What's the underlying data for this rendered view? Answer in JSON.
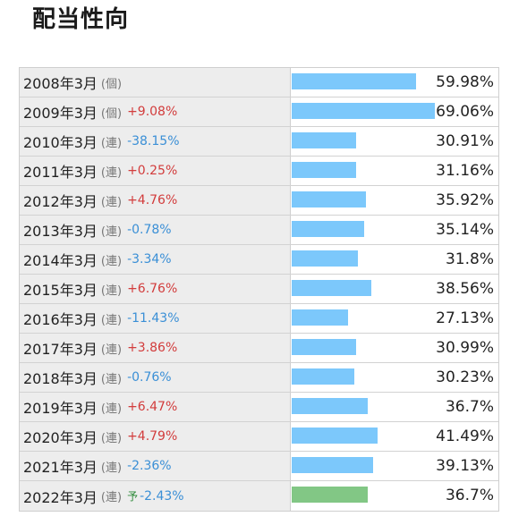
{
  "title": "配当性向",
  "rows": [
    {
      "period": "2008年3月",
      "type": "(個)",
      "forecast": "",
      "change": "",
      "dir": "",
      "value": "59.98%",
      "ratio": 59.98,
      "is_forecast": false
    },
    {
      "period": "2009年3月",
      "type": "(個)",
      "forecast": "",
      "change": "+9.08%",
      "dir": "up",
      "value": "69.06%",
      "ratio": 69.06,
      "is_forecast": false
    },
    {
      "period": "2010年3月",
      "type": "(連)",
      "forecast": "",
      "change": "-38.15%",
      "dir": "down",
      "value": "30.91%",
      "ratio": 30.91,
      "is_forecast": false
    },
    {
      "period": "2011年3月",
      "type": "(連)",
      "forecast": "",
      "change": "+0.25%",
      "dir": "up",
      "value": "31.16%",
      "ratio": 31.16,
      "is_forecast": false
    },
    {
      "period": "2012年3月",
      "type": "(連)",
      "forecast": "",
      "change": "+4.76%",
      "dir": "up",
      "value": "35.92%",
      "ratio": 35.92,
      "is_forecast": false
    },
    {
      "period": "2013年3月",
      "type": "(連)",
      "forecast": "",
      "change": "-0.78%",
      "dir": "down",
      "value": "35.14%",
      "ratio": 35.14,
      "is_forecast": false
    },
    {
      "period": "2014年3月",
      "type": "(連)",
      "forecast": "",
      "change": "-3.34%",
      "dir": "down",
      "value": "31.8%",
      "ratio": 31.8,
      "is_forecast": false
    },
    {
      "period": "2015年3月",
      "type": "(連)",
      "forecast": "",
      "change": "+6.76%",
      "dir": "up",
      "value": "38.56%",
      "ratio": 38.56,
      "is_forecast": false
    },
    {
      "period": "2016年3月",
      "type": "(連)",
      "forecast": "",
      "change": "-11.43%",
      "dir": "down",
      "value": "27.13%",
      "ratio": 27.13,
      "is_forecast": false
    },
    {
      "period": "2017年3月",
      "type": "(連)",
      "forecast": "",
      "change": "+3.86%",
      "dir": "up",
      "value": "30.99%",
      "ratio": 30.99,
      "is_forecast": false
    },
    {
      "period": "2018年3月",
      "type": "(連)",
      "forecast": "",
      "change": "-0.76%",
      "dir": "down",
      "value": "30.23%",
      "ratio": 30.23,
      "is_forecast": false
    },
    {
      "period": "2019年3月",
      "type": "(連)",
      "forecast": "",
      "change": "+6.47%",
      "dir": "up",
      "value": "36.7%",
      "ratio": 36.7,
      "is_forecast": false
    },
    {
      "period": "2020年3月",
      "type": "(連)",
      "forecast": "",
      "change": "+4.79%",
      "dir": "up",
      "value": "41.49%",
      "ratio": 41.49,
      "is_forecast": false
    },
    {
      "period": "2021年3月",
      "type": "(連)",
      "forecast": "",
      "change": "-2.36%",
      "dir": "down",
      "value": "39.13%",
      "ratio": 39.13,
      "is_forecast": false
    },
    {
      "period": "2022年3月",
      "type": "(連)",
      "forecast": "予",
      "change": "-2.43%",
      "dir": "down",
      "value": "36.7%",
      "ratio": 36.7,
      "is_forecast": true
    }
  ],
  "colors": {
    "bar": "#7cc8fb",
    "forecast_bar": "#82c785",
    "up": "#d23c3c",
    "down": "#3a8fd6"
  }
}
